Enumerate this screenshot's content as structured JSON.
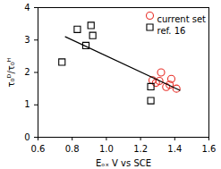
{
  "chart_data": {
    "type": "scatter",
    "x_label": "Eₒₓ V vs SCE",
    "y_label": "τ₀ᴰ/τ₀ᴴ",
    "xlim": [
      0.6,
      1.6
    ],
    "xticks": [
      0.6,
      0.8,
      {
        "value": 1,
        "label": "1.0"
      },
      1.2,
      1.4,
      1.6
    ],
    "ylim": [
      0,
      4
    ],
    "yticks": [
      0,
      1,
      2,
      3,
      4
    ],
    "legend": "top-right",
    "series": [
      {
        "name": "current set",
        "color": "#e8312a",
        "marker": "circle",
        "x": [
          1.27,
          1.29,
          1.31,
          1.32,
          1.35,
          1.37,
          1.38,
          1.41
        ],
        "values": [
          1.76,
          1.68,
          1.74,
          2.0,
          1.55,
          1.62,
          1.8,
          1.5
        ]
      },
      {
        "name": "ref. 16",
        "color": "#000000",
        "marker": "square",
        "x": [
          0.74,
          0.83,
          0.88,
          0.91,
          0.92,
          1.26,
          1.26
        ],
        "values": [
          2.32,
          3.33,
          2.83,
          3.45,
          3.14,
          1.56,
          1.13
        ]
      },
      {
        "type": "line",
        "color": "#000000",
        "line_style": "solid",
        "x": [
          0.76,
          1.43
        ],
        "values": [
          3.1,
          1.45
        ]
      }
    ]
  }
}
